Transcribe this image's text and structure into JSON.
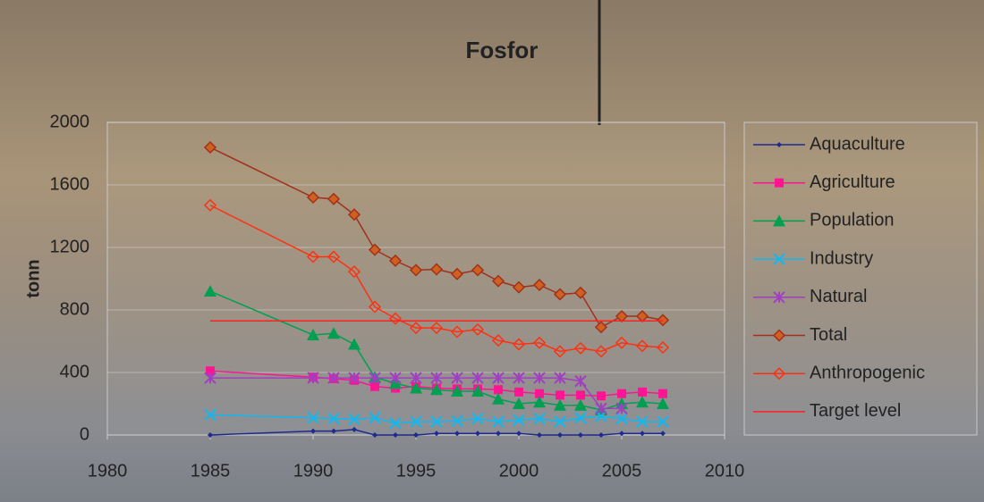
{
  "chart_data": {
    "type": "line",
    "title": "Fosfor",
    "y_label": "tonn",
    "x": [
      1985,
      1990,
      1991,
      1992,
      1993,
      1994,
      1995,
      1996,
      1997,
      1998,
      1999,
      2000,
      2001,
      2002,
      2003,
      2004,
      2005,
      2006,
      2007
    ],
    "xlim": [
      1980,
      2010
    ],
    "xticks": [
      1980,
      1985,
      1990,
      1995,
      2000,
      2005,
      2010
    ],
    "ylim": [
      0,
      2000
    ],
    "yticks": [
      0,
      400,
      800,
      1200,
      1600,
      2000
    ],
    "grid": true,
    "legend": "right",
    "series": [
      {
        "name": "Aquaculture",
        "color": "#1f2a8f",
        "marker": "diamond",
        "values": [
          0,
          25,
          25,
          35,
          0,
          0,
          0,
          10,
          10,
          10,
          10,
          10,
          0,
          0,
          0,
          0,
          10,
          10,
          10
        ]
      },
      {
        "name": "Agriculture",
        "color": "#ff1493",
        "marker": "square",
        "values": [
          410,
          370,
          360,
          350,
          310,
          300,
          310,
          300,
          295,
          295,
          290,
          275,
          265,
          255,
          255,
          250,
          265,
          275,
          265
        ]
      },
      {
        "name": "Population",
        "color": "#00a050",
        "marker": "triangle",
        "values": [
          920,
          640,
          650,
          580,
          370,
          330,
          300,
          290,
          280,
          280,
          230,
          200,
          210,
          190,
          190,
          160,
          200,
          210,
          200
        ]
      },
      {
        "name": "Industry",
        "color": "#10b8f0",
        "marker": "x",
        "values": [
          130,
          110,
          105,
          100,
          110,
          75,
          85,
          85,
          90,
          105,
          85,
          95,
          105,
          85,
          110,
          120,
          105,
          85,
          85
        ]
      },
      {
        "name": "Natural",
        "color": "#a040c0",
        "marker": "star",
        "values": [
          365,
          365,
          365,
          365,
          365,
          365,
          365,
          365,
          365,
          365,
          365,
          365,
          365,
          365,
          345,
          170,
          170,
          null,
          null
        ]
      },
      {
        "name": "Total",
        "color": "#a0301a",
        "marker": "filled-diamond",
        "values": [
          1840,
          1520,
          1510,
          1410,
          1185,
          1115,
          1055,
          1060,
          1030,
          1055,
          985,
          945,
          960,
          900,
          910,
          690,
          760,
          760,
          735
        ]
      },
      {
        "name": "Anthropogenic",
        "color": "#ff3010",
        "marker": "open-diamond",
        "values": [
          1470,
          1140,
          1140,
          1045,
          820,
          745,
          685,
          685,
          660,
          675,
          605,
          580,
          590,
          535,
          555,
          535,
          590,
          570,
          560
        ]
      },
      {
        "name": "Target level",
        "color": "#ff2020",
        "marker": "none",
        "values": [
          730,
          730,
          730,
          730,
          730,
          730,
          730,
          730,
          730,
          730,
          730,
          730,
          730,
          730,
          730,
          730,
          730,
          730,
          730
        ]
      }
    ]
  }
}
